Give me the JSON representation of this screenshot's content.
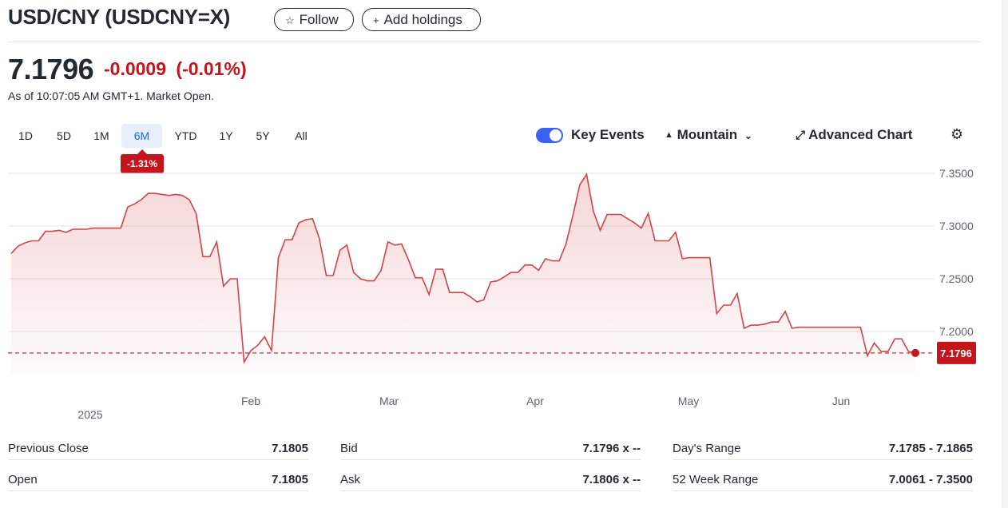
{
  "header": {
    "title": "USD/CNY (USDCNY=X)",
    "follow_icon": "star-icon",
    "follow_label": "Follow",
    "add_icon": "plus-icon",
    "add_label": "Add holdings"
  },
  "quote": {
    "price": "7.1796",
    "change": "-0.0009",
    "change_pct": "(-0.01%)",
    "as_of": "As of 10:07:05 AM GMT+1. Market Open."
  },
  "ranges": [
    "1D",
    "5D",
    "1M",
    "6M",
    "YTD",
    "1Y",
    "5Y",
    "All"
  ],
  "active_range": "6M",
  "range_change_badge": "-1.31%",
  "toolbar": {
    "key_events_label": "Key Events",
    "key_events_on": true,
    "chart_type_label": "Mountain",
    "advanced_label": "Advanced Chart",
    "settings_icon": "gear-icon"
  },
  "colors": {
    "accent": "#0f69ff",
    "negative": "#c4141c",
    "toggle": "#3a60f5",
    "line": "#d2434a"
  },
  "chart_data": {
    "type": "area",
    "y_ticks": [
      "7.3500",
      "7.3000",
      "7.2500",
      "7.2000"
    ],
    "ylim": [
      7.165,
      7.355
    ],
    "x_ticks": [
      "Feb",
      "Mar",
      "Apr",
      "May",
      "Jun"
    ],
    "year_label": "2025",
    "current_label": "7.1796",
    "current_value": 7.1796,
    "grid": true,
    "series": [
      {
        "values": [
          7.274,
          7.281,
          7.284,
          7.286,
          7.286,
          7.295,
          7.295,
          7.296,
          7.294,
          7.297,
          7.297,
          7.297,
          7.298,
          7.298,
          7.298,
          7.298,
          7.298,
          7.318,
          7.321,
          7.325,
          7.331,
          7.331,
          7.33,
          7.329,
          7.33,
          7.329,
          7.325,
          7.312,
          7.271,
          7.271,
          7.285,
          7.243,
          7.25,
          7.25,
          7.171,
          7.182,
          7.187,
          7.195,
          7.182,
          7.27,
          7.287,
          7.287,
          7.303,
          7.306,
          7.307,
          7.288,
          7.253,
          7.253,
          7.277,
          7.282,
          7.256,
          7.25,
          7.248,
          7.248,
          7.258,
          7.285,
          7.282,
          7.283,
          7.268,
          7.251,
          7.251,
          7.235,
          7.259,
          7.259,
          7.237,
          7.237,
          7.237,
          7.233,
          7.228,
          7.23,
          7.247,
          7.248,
          7.252,
          7.256,
          7.256,
          7.263,
          7.263,
          7.258,
          7.269,
          7.267,
          7.267,
          7.283,
          7.31,
          7.339,
          7.349,
          7.314,
          7.296,
          7.311,
          7.311,
          7.311,
          7.307,
          7.303,
          7.298,
          7.312,
          7.286,
          7.286,
          7.286,
          7.294,
          7.269,
          7.27,
          7.27,
          7.27,
          7.27,
          7.217,
          7.225,
          7.225,
          7.236,
          7.203,
          7.206,
          7.206,
          7.207,
          7.209,
          7.209,
          7.219,
          7.203,
          7.204,
          7.204,
          7.204,
          7.204,
          7.204,
          7.204,
          7.204,
          7.204,
          7.204,
          7.204,
          7.177,
          7.189,
          7.181,
          7.181,
          7.193,
          7.193,
          7.181,
          7.1796
        ]
      }
    ]
  },
  "stats": [
    {
      "label": "Previous Close",
      "value": "7.1805"
    },
    {
      "label": "Bid",
      "value": "7.1796 x --"
    },
    {
      "label": "Day's Range",
      "value": "7.1785 - 7.1865"
    },
    {
      "label": "Open",
      "value": "7.1805"
    },
    {
      "label": "Ask",
      "value": "7.1806 x --"
    },
    {
      "label": "52 Week Range",
      "value": "7.0061 - 7.3500"
    }
  ]
}
